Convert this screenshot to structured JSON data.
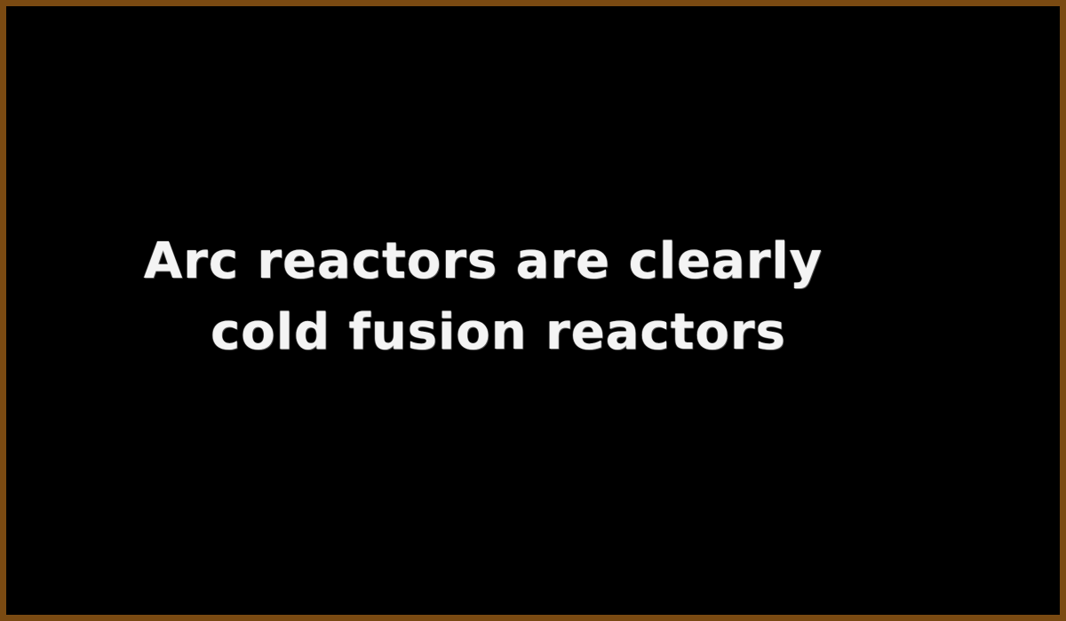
{
  "board": {
    "frame_color": "#7a4a12",
    "background_color": "#000000",
    "text_color": "#f4f4f4"
  },
  "message": {
    "line1": "Arc reactors are clearly",
    "line2": "cold fusion reactors"
  }
}
